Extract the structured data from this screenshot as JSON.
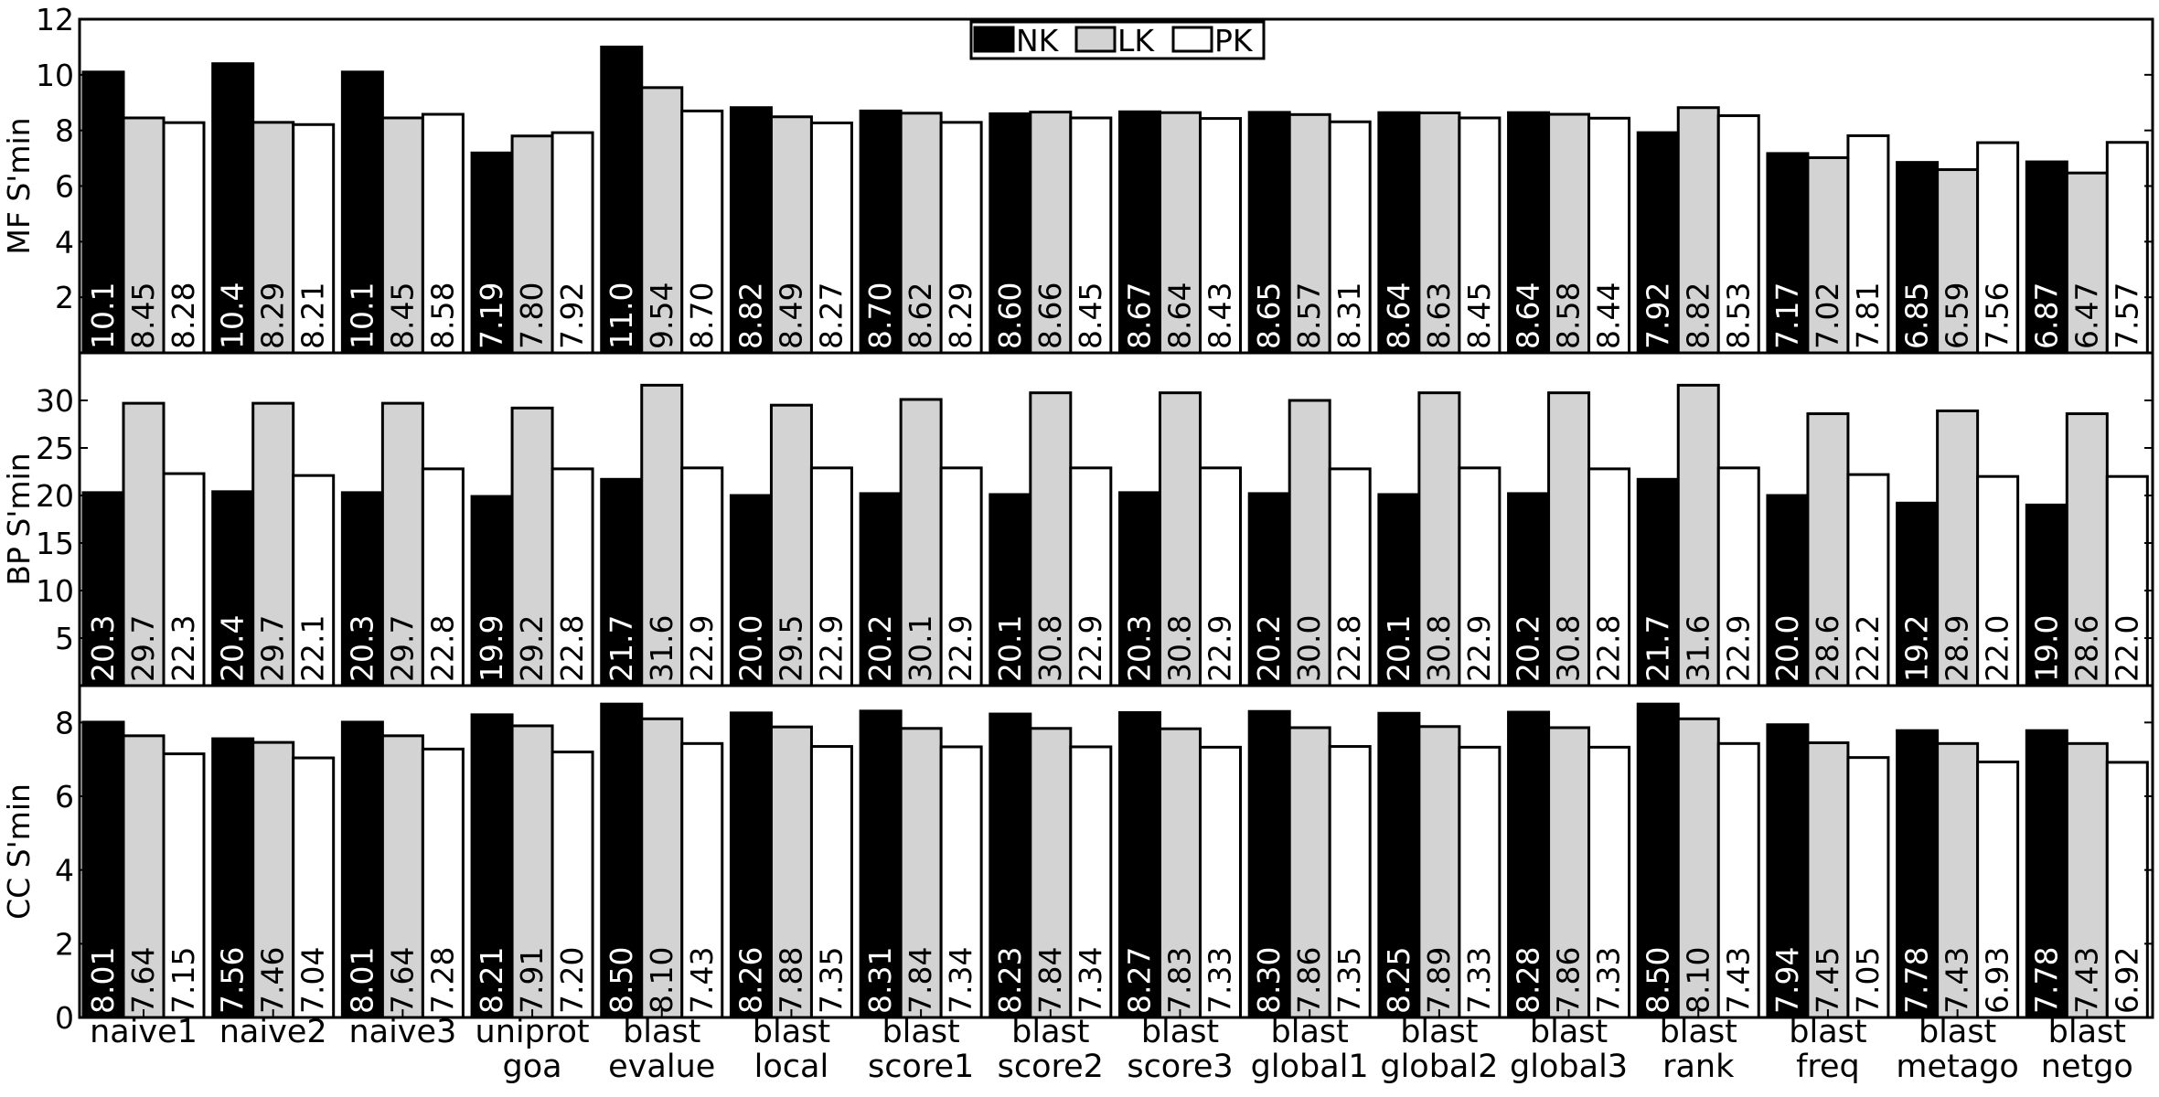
{
  "legend": {
    "placement": "top-center",
    "entries": [
      {
        "label": "NK",
        "color": "#000000"
      },
      {
        "label": "LK",
        "color": "#d3d3d3"
      },
      {
        "label": "PK",
        "color": "#ffffff"
      }
    ]
  },
  "chart_data": [
    {
      "type": "bar",
      "ylabel": "MF S'min",
      "ylim": [
        0,
        12
      ],
      "yticks": [
        "2",
        "4",
        "6",
        "8",
        "10",
        "12"
      ],
      "grid": false,
      "categories": [
        [
          "naive1"
        ],
        [
          "naive2"
        ],
        [
          "naive3"
        ],
        [
          "uniprot",
          "goa"
        ],
        [
          "blast",
          "evalue"
        ],
        [
          "blast",
          "local"
        ],
        [
          "blast",
          "score1"
        ],
        [
          "blast",
          "score2"
        ],
        [
          "blast",
          "score3"
        ],
        [
          "blast",
          "global1"
        ],
        [
          "blast",
          "global2"
        ],
        [
          "blast",
          "global3"
        ],
        [
          "blast",
          "rank"
        ],
        [
          "blast",
          "freq"
        ],
        [
          "blast",
          "metago"
        ],
        [
          "blast",
          "netgo"
        ]
      ],
      "series": [
        {
          "name": "NK",
          "values": [
            10.1,
            10.4,
            10.1,
            7.19,
            11.0,
            8.82,
            8.7,
            8.6,
            8.67,
            8.65,
            8.64,
            8.64,
            7.92,
            7.17,
            6.85,
            6.87
          ],
          "labels": [
            "10.1",
            "10.4",
            "10.1",
            "7.19",
            "11.0",
            "8.82",
            "8.70",
            "8.60",
            "8.67",
            "8.65",
            "8.64",
            "8.64",
            "7.92",
            "7.17",
            "6.85",
            "6.87"
          ]
        },
        {
          "name": "LK",
          "values": [
            8.45,
            8.29,
            8.45,
            7.8,
            9.54,
            8.49,
            8.62,
            8.66,
            8.64,
            8.57,
            8.63,
            8.58,
            8.82,
            7.02,
            6.59,
            6.47
          ],
          "labels": [
            "8.45",
            "8.29",
            "8.45",
            "7.80",
            "9.54",
            "8.49",
            "8.62",
            "8.66",
            "8.64",
            "8.57",
            "8.63",
            "8.58",
            "8.82",
            "7.02",
            "6.59",
            "6.47"
          ]
        },
        {
          "name": "PK",
          "values": [
            8.28,
            8.21,
            8.58,
            7.92,
            8.7,
            8.27,
            8.29,
            8.45,
            8.43,
            8.31,
            8.45,
            8.44,
            8.53,
            7.81,
            7.56,
            7.57
          ],
          "labels": [
            "8.28",
            "8.21",
            "8.58",
            "7.92",
            "8.70",
            "8.27",
            "8.29",
            "8.45",
            "8.43",
            "8.31",
            "8.45",
            "8.44",
            "8.53",
            "7.81",
            "7.56",
            "7.57"
          ]
        }
      ]
    },
    {
      "type": "bar",
      "ylabel": "BP S'min",
      "ylim": [
        0,
        35
      ],
      "yticks": [
        "5",
        "10",
        "15",
        "20",
        "25",
        "30"
      ],
      "grid": false,
      "series": [
        {
          "name": "NK",
          "values": [
            20.3,
            20.4,
            20.3,
            19.9,
            21.7,
            20.0,
            20.2,
            20.1,
            20.3,
            20.2,
            20.1,
            20.2,
            21.7,
            20.0,
            19.2,
            19.0
          ],
          "labels": [
            "20.3",
            "20.4",
            "20.3",
            "19.9",
            "21.7",
            "20.0",
            "20.2",
            "20.1",
            "20.3",
            "20.2",
            "20.1",
            "20.2",
            "21.7",
            "20.0",
            "19.2",
            "19.0"
          ]
        },
        {
          "name": "LK",
          "values": [
            29.7,
            29.7,
            29.7,
            29.2,
            31.6,
            29.5,
            30.1,
            30.8,
            30.8,
            30.0,
            30.8,
            30.8,
            31.6,
            28.6,
            28.9,
            28.6
          ],
          "labels": [
            "29.7",
            "29.7",
            "29.7",
            "29.2",
            "31.6",
            "29.5",
            "30.1",
            "30.8",
            "30.8",
            "30.0",
            "30.8",
            "30.8",
            "31.6",
            "28.6",
            "28.9",
            "28.6"
          ]
        },
        {
          "name": "PK",
          "values": [
            22.3,
            22.1,
            22.8,
            22.8,
            22.9,
            22.9,
            22.9,
            22.9,
            22.9,
            22.8,
            22.9,
            22.8,
            22.9,
            22.2,
            22.0,
            22.0
          ],
          "labels": [
            "22.3",
            "22.1",
            "22.8",
            "22.8",
            "22.9",
            "22.9",
            "22.9",
            "22.9",
            "22.9",
            "22.8",
            "22.9",
            "22.8",
            "22.9",
            "22.2",
            "22.0",
            "22.0"
          ]
        }
      ]
    },
    {
      "type": "bar",
      "ylabel": "CC S'min",
      "ylim": [
        0,
        9
      ],
      "yticks": [
        "0",
        "2",
        "4",
        "6",
        "8"
      ],
      "grid": false,
      "series": [
        {
          "name": "NK",
          "values": [
            8.01,
            7.56,
            8.01,
            8.21,
            8.5,
            8.26,
            8.31,
            8.23,
            8.27,
            8.3,
            8.25,
            8.28,
            8.5,
            7.94,
            7.78,
            7.78
          ],
          "labels": [
            "8.01",
            "7.56",
            "8.01",
            "8.21",
            "8.50",
            "8.26",
            "8.31",
            "8.23",
            "8.27",
            "8.30",
            "8.25",
            "8.28",
            "8.50",
            "7.94",
            "7.78",
            "7.78"
          ]
        },
        {
          "name": "LK",
          "values": [
            7.64,
            7.46,
            7.64,
            7.91,
            8.1,
            7.88,
            7.84,
            7.84,
            7.83,
            7.86,
            7.89,
            7.86,
            8.1,
            7.45,
            7.43,
            7.43
          ],
          "labels": [
            "7.64",
            "7.46",
            "7.64",
            "7.91",
            "8.10",
            "7.88",
            "7.84",
            "7.84",
            "7.83",
            "7.86",
            "7.89",
            "7.86",
            "8.10",
            "7.45",
            "7.43",
            "7.43"
          ]
        },
        {
          "name": "PK",
          "values": [
            7.15,
            7.04,
            7.28,
            7.2,
            7.43,
            7.35,
            7.34,
            7.34,
            7.33,
            7.35,
            7.33,
            7.33,
            7.43,
            7.05,
            6.93,
            6.92
          ],
          "labels": [
            "7.15",
            "7.04",
            "7.28",
            "7.20",
            "7.43",
            "7.35",
            "7.34",
            "7.34",
            "7.33",
            "7.35",
            "7.33",
            "7.33",
            "7.43",
            "7.05",
            "6.93",
            "6.92"
          ]
        }
      ]
    }
  ]
}
